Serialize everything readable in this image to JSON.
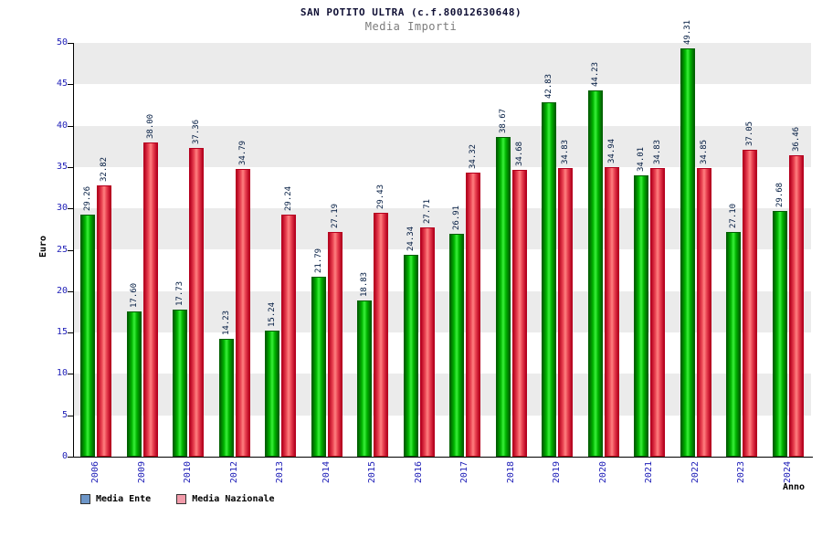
{
  "chart_data": {
    "type": "bar",
    "title": "SAN POTITO ULTRA (c.f.80012630648)",
    "subtitle": "Media Importi",
    "xlabel": "Anno",
    "ylabel": "Euro",
    "ylim": [
      0,
      50
    ],
    "ytick_step": 5,
    "grid": "alternating-horizontal-bands",
    "band_colors": [
      "#ffffff",
      "#ebebeb"
    ],
    "axis_color": "#000000",
    "axis_tick_label_color": "#2020b8",
    "value_label_color": "#001a40",
    "legend_position": "bottom-left",
    "categories": [
      "2006",
      "2009",
      "2010",
      "2012",
      "2013",
      "2014",
      "2015",
      "2016",
      "2017",
      "2018",
      "2019",
      "2020",
      "2021",
      "2022",
      "2023",
      "2024"
    ],
    "series": [
      {
        "name": "Media Ente",
        "legend_color": "#6d96c8",
        "gradient": [
          "#006000",
          "#00b400",
          "#39f039"
        ],
        "values": [
          29.26,
          17.6,
          17.73,
          14.23,
          15.24,
          21.79,
          18.83,
          24.34,
          26.91,
          38.67,
          42.83,
          44.23,
          34.01,
          49.31,
          27.1,
          29.68
        ],
        "labels": [
          "29.26",
          "17.60",
          "17.73",
          "14.23",
          "15.24",
          "21.79",
          "18.83",
          "24.34",
          "26.91",
          "38.67",
          "42.83",
          "44.23",
          "34.01",
          "49.31",
          "27.10",
          "29.68"
        ]
      },
      {
        "name": "Media Nazionale",
        "legend_color": "#f29baa",
        "gradient": [
          "#b5001e",
          "#e84050",
          "#ff8080"
        ],
        "values": [
          32.82,
          38.0,
          37.36,
          34.79,
          29.24,
          27.19,
          29.43,
          27.71,
          34.32,
          34.68,
          34.83,
          34.94,
          34.83,
          34.85,
          37.05,
          36.46
        ],
        "labels": [
          "32.82",
          "38.00",
          "37.36",
          "34.79",
          "29.24",
          "27.19",
          "29.43",
          "27.71",
          "34.32",
          "34.68",
          "34.83",
          "34.94",
          "34.83",
          "34.85",
          "37.05",
          "36.46"
        ]
      }
    ]
  }
}
